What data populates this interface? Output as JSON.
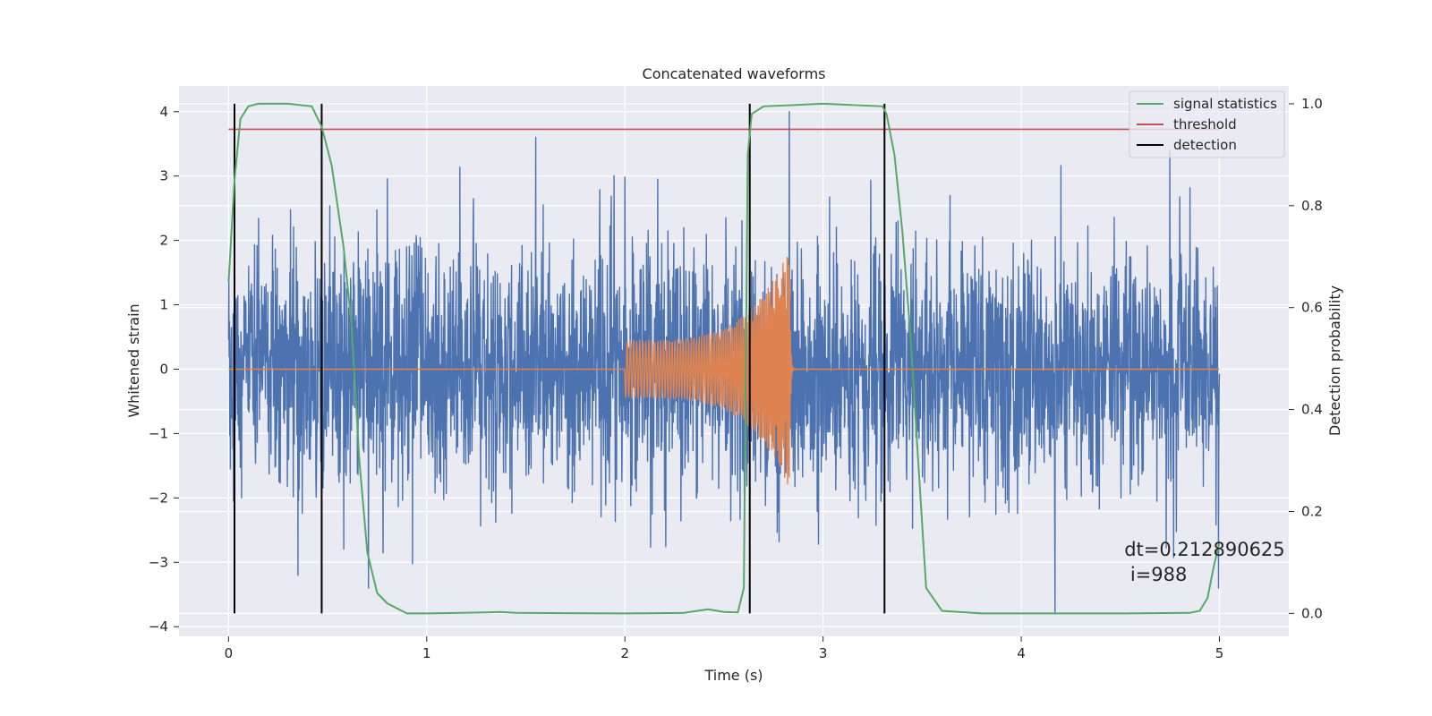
{
  "chart_data": {
    "type": "line",
    "title": "Concatenated waveforms",
    "xlabel": "Time (s)",
    "ylabel": "Whitened strain",
    "y2label": "Detection probability",
    "xlim": [
      -0.25,
      5.35
    ],
    "ylim": [
      -4.15,
      4.4
    ],
    "y2lim": [
      -0.045,
      1.035
    ],
    "xticks": [
      0,
      1,
      2,
      3,
      4,
      5
    ],
    "yticks": [
      -4,
      -3,
      -2,
      -1,
      0,
      1,
      2,
      3,
      4
    ],
    "y2ticks": [
      0.0,
      0.2,
      0.4,
      0.6,
      0.8,
      1.0
    ],
    "xtick_labels": [
      "0",
      "1",
      "2",
      "3",
      "4",
      "5"
    ],
    "ytick_labels": [
      "−4",
      "−3",
      "−2",
      "−1",
      "0",
      "1",
      "2",
      "3",
      "4"
    ],
    "y2tick_labels": [
      "0.0",
      "0.2",
      "0.4",
      "0.6",
      "0.8",
      "1.0"
    ],
    "grid": true,
    "legend_position": "top-right",
    "legend": [
      {
        "label": "signal statistics",
        "color": "#55a868"
      },
      {
        "label": "threshold",
        "color": "#c44e52"
      },
      {
        "label": "detection",
        "color": "#000000"
      }
    ],
    "colors": {
      "noise": "#4c72b0",
      "injection": "#dd8452",
      "signal_statistics": "#55a868",
      "threshold": "#c44e52",
      "detection": "#000000",
      "axes_background": "#eaeaf2",
      "grid": "#ffffff"
    },
    "noise_strain": {
      "x_range": [
        0,
        5
      ],
      "amplitude_core": 1.0,
      "peak_range": [
        -3.8,
        4.0
      ],
      "notable_peaks": [
        [
          1.55,
          3.6
        ],
        [
          2.83,
          4.0
        ],
        [
          4.75,
          3.4
        ],
        [
          4.17,
          -3.8
        ],
        [
          0.35,
          -3.2
        ]
      ]
    },
    "injected_chirp": {
      "start_x": 2.0,
      "peak_x": 2.83,
      "end_x": 2.86,
      "start_amplitude": 0.45,
      "peak_amplitude": 1.85
    },
    "signal_statistics": {
      "x": [
        0.0,
        0.03,
        0.06,
        0.1,
        0.15,
        0.3,
        0.42,
        0.47,
        0.52,
        0.58,
        0.62,
        0.66,
        0.7,
        0.75,
        0.8,
        0.9,
        1.0,
        1.3,
        1.37,
        1.45,
        2.0,
        2.3,
        2.38,
        2.42,
        2.5,
        2.57,
        2.6,
        2.62,
        2.64,
        2.7,
        3.0,
        3.3,
        3.32,
        3.36,
        3.4,
        3.44,
        3.48,
        3.52,
        3.6,
        3.8,
        4.0,
        4.5,
        4.85,
        4.9,
        4.94,
        4.97,
        5.0
      ],
      "y": [
        0.65,
        0.85,
        0.97,
        0.995,
        1.0,
        1.0,
        0.995,
        0.955,
        0.88,
        0.72,
        0.57,
        0.3,
        0.12,
        0.04,
        0.02,
        0.0,
        0.0,
        0.002,
        0.003,
        0.001,
        0.0,
        0.001,
        0.006,
        0.008,
        0.003,
        0.002,
        0.05,
        0.9,
        0.98,
        0.995,
        1.0,
        0.995,
        0.98,
        0.9,
        0.75,
        0.55,
        0.3,
        0.05,
        0.005,
        0.0,
        0.0,
        0.0,
        0.001,
        0.005,
        0.03,
        0.09,
        0.14
      ]
    },
    "threshold_value": 0.95,
    "threshold_x_range": [
      0,
      5
    ],
    "detections_x": [
      0.03,
      0.47,
      2.63,
      3.31
    ],
    "detection_y_range": [
      0.0,
      1.0
    ],
    "annotation": {
      "lines": [
        "dt=0.212890625",
        " i=988"
      ],
      "x": 4.52,
      "y": 0.113
    }
  }
}
